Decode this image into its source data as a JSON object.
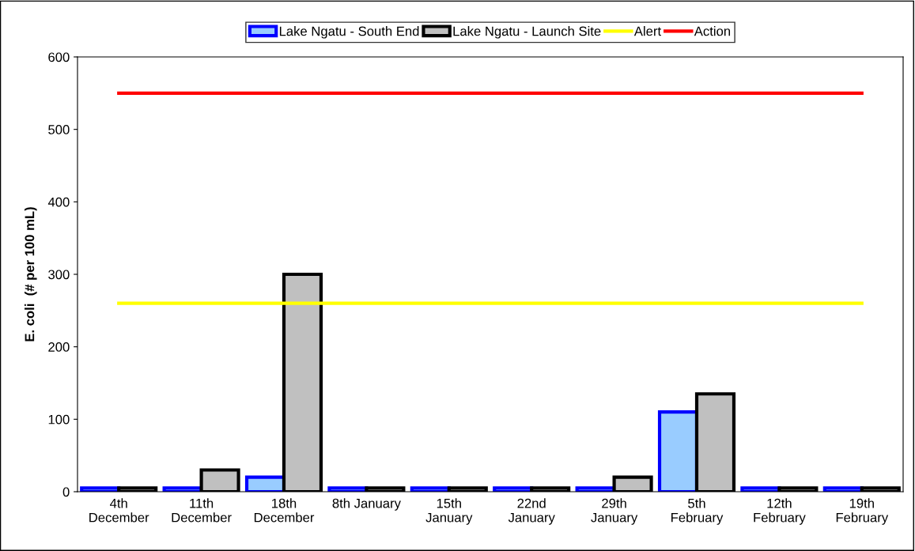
{
  "chart_data": {
    "type": "bar",
    "ylabel": "E. coli  (# per 100 mL)",
    "categories": [
      "4th\nDecember",
      "11th\nDecember",
      "18th\nDecember",
      "8th January",
      "15th\nJanuary",
      "22nd\nJanuary",
      "29th\nJanuary",
      "5th\nFebruary",
      "12th\nFebruary",
      "19th\nFebruary"
    ],
    "series": [
      {
        "name": "Lake Ngatu - South End",
        "color": "#99ccff",
        "values": [
          5,
          5,
          20,
          5,
          5,
          5,
          5,
          110,
          5,
          5
        ]
      },
      {
        "name": "Lake Ngatu - Launch Site",
        "color": "#c0c0c0",
        "values": [
          5,
          30,
          300,
          5,
          5,
          5,
          20,
          135,
          5,
          5
        ]
      },
      {
        "name": "Alert",
        "type": "line",
        "color": "#ffff00",
        "values": [
          260,
          260,
          260,
          260,
          260,
          260,
          260,
          260,
          260,
          260
        ]
      },
      {
        "name": "Action",
        "type": "line",
        "color": "#ff0000",
        "values": [
          550,
          550,
          550,
          550,
          550,
          550,
          550,
          550,
          550,
          550
        ]
      }
    ],
    "ylim": [
      0,
      600
    ],
    "yticks": [
      0,
      100,
      200,
      300,
      400,
      500,
      600
    ],
    "grid": false,
    "legend": "top",
    "marker": "none"
  }
}
